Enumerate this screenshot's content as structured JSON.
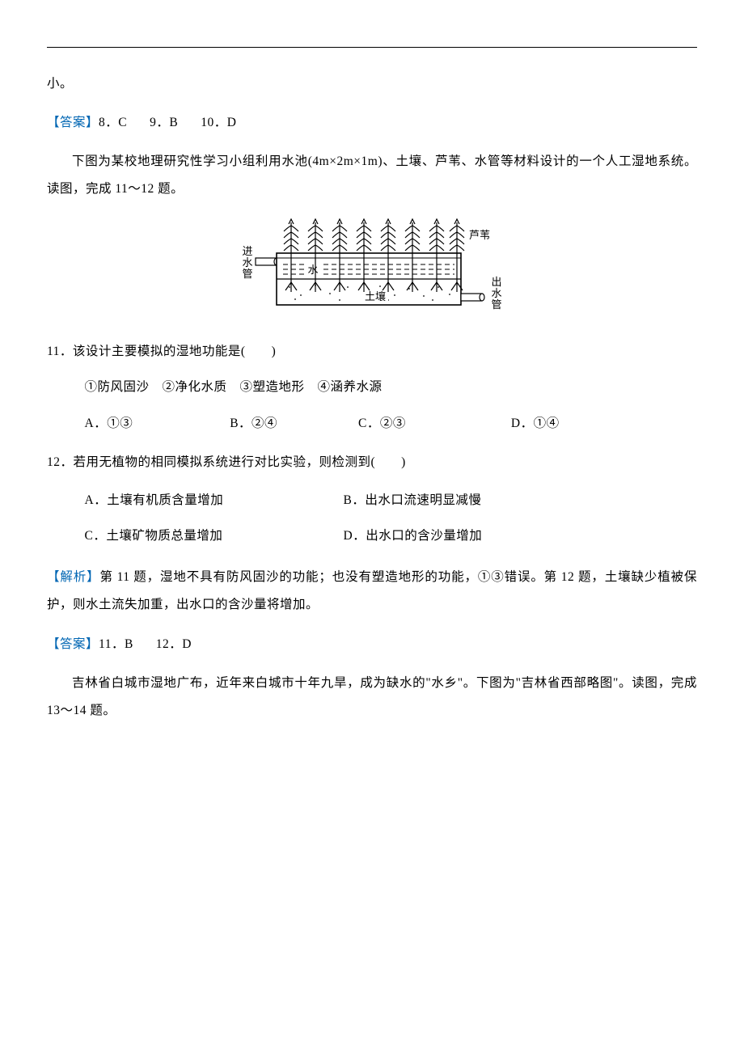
{
  "continuation": "小。",
  "ans1": {
    "label": "【答案】",
    "a": "8．C",
    "b": "9．B",
    "c": "10．D"
  },
  "intro1": "下图为某校地理研究性学习小组利用水池(4m×2m×1m)、土壤、芦苇、水管等材料设计的一个人工湿地系统。读图，完成 11～12 题。",
  "figure1": {
    "labels": {
      "inlet1": "进",
      "inlet2": "水",
      "inlet3": "管",
      "outlet1": "出",
      "outlet2": "水",
      "outlet3": "管",
      "reed": "芦苇",
      "water": "水",
      "soil": "土壤"
    },
    "colors": {
      "stroke": "#000000",
      "fill_white": "#ffffff"
    }
  },
  "q11": {
    "stem": "11．该设计主要模拟的湿地功能是(　　)",
    "sub": "①防风固沙　②净化水质　③塑造地形　④涵养水源",
    "opts": {
      "A": "A．①③",
      "B": "B．②④",
      "C": "C．②③",
      "D": "D．①④"
    },
    "opt_positions": [
      0,
      180,
      340,
      530
    ]
  },
  "q12": {
    "stem": "12．若用无植物的相同模拟系统进行对比实验，则检测到(　　)",
    "opts": {
      "A": "A．土壤有机质含量增加",
      "B": "B．出水口流速明显减慢",
      "C": "C．土壤矿物质总量增加",
      "D": "D．出水口的含沙量增加"
    }
  },
  "analysis1": {
    "label": "【解析】",
    "text": "第 11 题，湿地不具有防风固沙的功能；也没有塑造地形的功能，①③错误。第 12 题，土壤缺少植被保护，则水土流失加重，出水口的含沙量将增加。"
  },
  "ans2": {
    "label": "【答案】",
    "a": "11．B",
    "b": "12．D"
  },
  "intro2": "吉林省白城市湿地广布，近年来白城市十年九旱，成为缺水的\"水乡\"。下图为\"吉林省西部略图\"。读图，完成 13～14 题。"
}
